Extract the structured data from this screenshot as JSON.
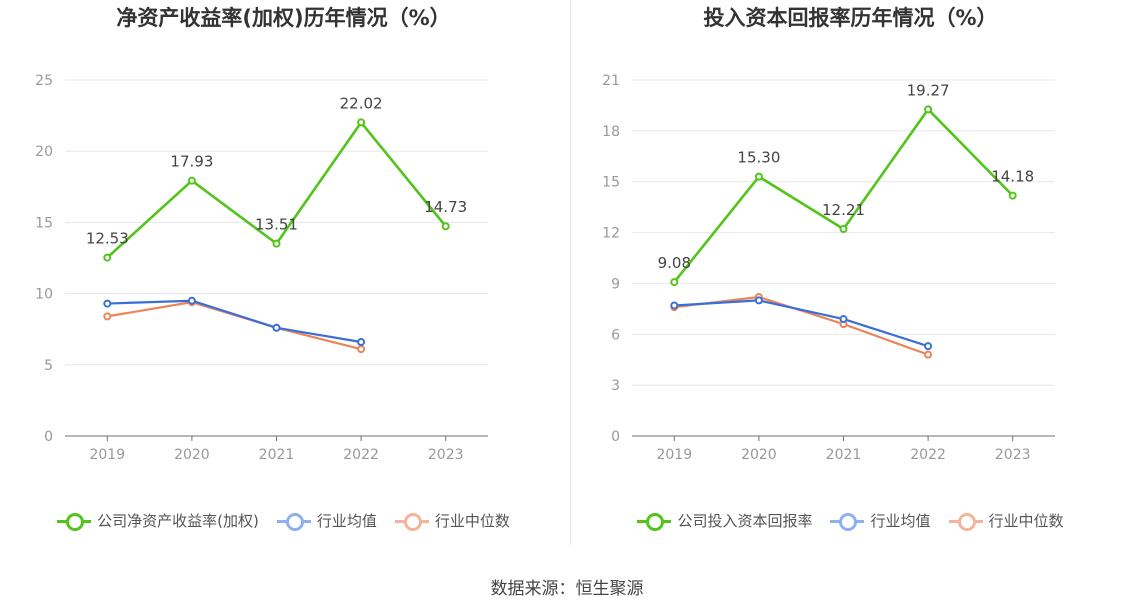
{
  "colors": {
    "company": "#52c41a",
    "industry_avg": "#3b6fd8",
    "industry_median": "#ee8358",
    "legend_avg": "#8fb0ef",
    "legend_median": "#f5b39a",
    "grid": "#e4e7ee",
    "axis_text": "#999999",
    "label_text": "#444444"
  },
  "source": "数据来源：恒生聚源",
  "chart_data": [
    {
      "type": "line",
      "title": "净资产收益率(加权)历年情况（%）",
      "categories": [
        "2019",
        "2020",
        "2021",
        "2022",
        "2023"
      ],
      "ylim": [
        0,
        25
      ],
      "yticks": [
        0,
        5,
        10,
        15,
        20,
        25
      ],
      "series": [
        {
          "key": "company",
          "name": "公司净资产收益率(加权)",
          "values": [
            12.53,
            17.93,
            13.51,
            22.02,
            14.73
          ],
          "labels": [
            "12.53",
            "17.93",
            "13.51",
            "22.02",
            "14.73"
          ]
        },
        {
          "key": "industry_avg",
          "name": "行业均值",
          "values": [
            9.3,
            9.5,
            7.6,
            6.6,
            null
          ]
        },
        {
          "key": "industry_median",
          "name": "行业中位数",
          "values": [
            8.4,
            9.4,
            7.6,
            6.1,
            null
          ]
        }
      ]
    },
    {
      "type": "line",
      "title": "投入资本回报率历年情况（%）",
      "categories": [
        "2019",
        "2020",
        "2021",
        "2022",
        "2023"
      ],
      "ylim": [
        0,
        21
      ],
      "yticks": [
        0,
        3,
        6,
        9,
        12,
        15,
        18,
        21
      ],
      "series": [
        {
          "key": "company",
          "name": "公司投入资本回报率",
          "values": [
            9.08,
            15.3,
            12.21,
            19.27,
            14.18
          ],
          "labels": [
            "9.08",
            "15.30",
            "12.21",
            "19.27",
            "14.18"
          ]
        },
        {
          "key": "industry_avg",
          "name": "行业均值",
          "values": [
            7.7,
            8.0,
            6.9,
            5.3,
            null
          ]
        },
        {
          "key": "industry_median",
          "name": "行业中位数",
          "values": [
            7.6,
            8.2,
            6.6,
            4.8,
            null
          ]
        }
      ]
    }
  ]
}
